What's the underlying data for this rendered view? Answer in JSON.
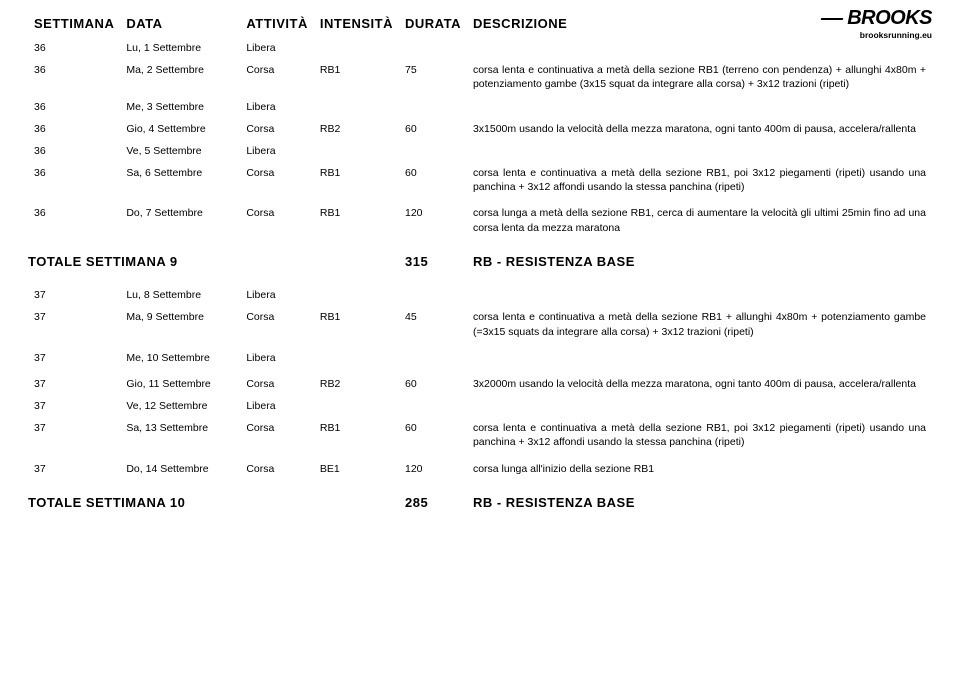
{
  "brand": {
    "name": "BROOKS",
    "url": "brooksrunning.eu"
  },
  "columns": {
    "settimana": "SETTIMANA",
    "data": "DATA",
    "attivita": "ATTIVITÀ",
    "intensita": "INTENSITÀ",
    "durata": "DURATA",
    "descrizione": "DESCRIZIONE"
  },
  "week9": {
    "rows": [
      {
        "w": "36",
        "d": "Lu, 1 Settembre",
        "a": "Libera",
        "i": "",
        "dur": "",
        "desc": ""
      },
      {
        "w": "36",
        "d": "Ma, 2 Settembre",
        "a": "Corsa",
        "i": "RB1",
        "dur": "75",
        "desc": "corsa lenta e continuativa a metà della sezione RB1 (terreno con pendenza) + allunghi 4x80m + potenziamento gambe (3x15 squat da integrare alla corsa) + 3x12 trazioni (ripeti)"
      },
      {
        "w": "36",
        "d": "Me, 3 Settembre",
        "a": "Libera",
        "i": "",
        "dur": "",
        "desc": ""
      },
      {
        "w": "36",
        "d": "Gio, 4 Settembre",
        "a": "Corsa",
        "i": "RB2",
        "dur": "60",
        "desc": "3x1500m usando la velocità della mezza maratona, ogni tanto 400m di pausa, accelera/rallenta"
      },
      {
        "w": "36",
        "d": "Ve, 5 Settembre",
        "a": "Libera",
        "i": "",
        "dur": "",
        "desc": ""
      },
      {
        "w": "36",
        "d": "Sa, 6 Settembre",
        "a": "Corsa",
        "i": "RB1",
        "dur": "60",
        "desc": "corsa lenta e continuativa a metà della sezione RB1, poi 3x12 piegamenti (ripeti) usando una panchina + 3x12 affondi usando la stessa panchina (ripeti)"
      },
      {
        "w": "36",
        "d": "Do, 7 Settembre",
        "a": "Corsa",
        "i": "RB1",
        "dur": "120",
        "desc": "corsa lunga a metà della sezione RB1, cerca di aumentare la velocità gli ultimi 25min fino ad una corsa lenta da mezza maratona"
      }
    ],
    "total_label": "TOTALE SETTIMANA 9",
    "total_dur": "315",
    "total_desc": "RB - RESISTENZA BASE"
  },
  "week10": {
    "rows": [
      {
        "w": "37",
        "d": "Lu, 8 Settembre",
        "a": "Libera",
        "i": "",
        "dur": "",
        "desc": ""
      },
      {
        "w": "37",
        "d": "Ma, 9 Settembre",
        "a": "Corsa",
        "i": "RB1",
        "dur": "45",
        "desc": "corsa lenta e continuativa a metà della sezione RB1 + allunghi 4x80m + potenziamento gambe (=3x15 squats da integrare alla corsa) + 3x12 trazioni (ripeti)"
      },
      {
        "w": "37",
        "d": "Me, 10 Settembre",
        "a": "Libera",
        "i": "",
        "dur": "",
        "desc": ""
      },
      {
        "w": "37",
        "d": "Gio, 11 Settembre",
        "a": "Corsa",
        "i": "RB2",
        "dur": "60",
        "desc": "3x2000m usando la velocità della mezza maratona, ogni tanto 400m di pausa, accelera/rallenta"
      },
      {
        "w": "37",
        "d": "Ve, 12 Settembre",
        "a": "Libera",
        "i": "",
        "dur": "",
        "desc": ""
      },
      {
        "w": "37",
        "d": "Sa, 13 Settembre",
        "a": "Corsa",
        "i": "RB1",
        "dur": "60",
        "desc": "corsa lenta e continuativa a metà della sezione RB1, poi 3x12 piegamenti (ripeti) usando una panchina + 3x12 affondi usando la stessa panchina (ripeti)"
      },
      {
        "w": "37",
        "d": "Do, 14 Settembre",
        "a": "Corsa",
        "i": "BE1",
        "dur": "120",
        "desc": "corsa lunga all'inizio della sezione RB1"
      }
    ],
    "total_label": "TOTALE SETTIMANA 10",
    "total_dur": "285",
    "total_desc": "RB - RESISTENZA BASE"
  }
}
